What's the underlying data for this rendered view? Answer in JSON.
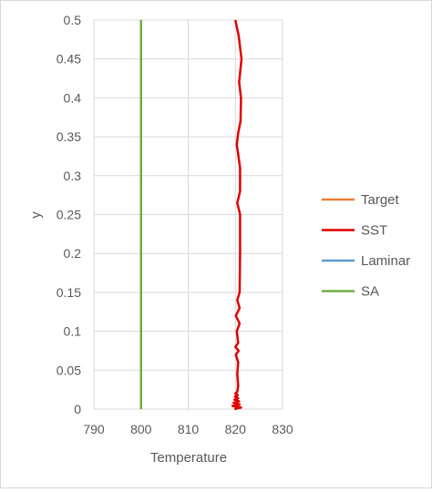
{
  "chart_data": {
    "type": "line",
    "title": "",
    "xlabel": "Temperature",
    "ylabel": "y",
    "xlim": [
      790,
      830
    ],
    "ylim": [
      0,
      0.5
    ],
    "x_ticks": [
      "790",
      "800",
      "810",
      "820",
      "830"
    ],
    "y_ticks": [
      "0",
      "0.05",
      "0.1",
      "0.15",
      "0.2",
      "0.25",
      "0.3",
      "0.35",
      "0.4",
      "0.45",
      "0.5"
    ],
    "grid": true,
    "legend_position": "right",
    "series": [
      {
        "name": "Target",
        "color": "#ED7D31",
        "points": []
      },
      {
        "name": "SST",
        "color": "#E00000",
        "points": [
          [
            819.8,
            0.0
          ],
          [
            821.2,
            0.002
          ],
          [
            819.4,
            0.004
          ],
          [
            820.9,
            0.006
          ],
          [
            819.6,
            0.008
          ],
          [
            820.8,
            0.01
          ],
          [
            819.8,
            0.012
          ],
          [
            820.6,
            0.014
          ],
          [
            819.9,
            0.016
          ],
          [
            820.5,
            0.018
          ],
          [
            820.0,
            0.02
          ],
          [
            820.4,
            0.022
          ],
          [
            820.6,
            0.03
          ],
          [
            820.4,
            0.045
          ],
          [
            820.6,
            0.06
          ],
          [
            820.1,
            0.07
          ],
          [
            820.7,
            0.075
          ],
          [
            820.0,
            0.08
          ],
          [
            820.6,
            0.085
          ],
          [
            820.5,
            0.09
          ],
          [
            820.3,
            0.1
          ],
          [
            820.9,
            0.11
          ],
          [
            820.1,
            0.12
          ],
          [
            820.9,
            0.13
          ],
          [
            820.4,
            0.14
          ],
          [
            820.9,
            0.15
          ],
          [
            821.0,
            0.2
          ],
          [
            821.0,
            0.25
          ],
          [
            820.4,
            0.265
          ],
          [
            821.0,
            0.28
          ],
          [
            821.0,
            0.31
          ],
          [
            820.3,
            0.34
          ],
          [
            820.6,
            0.355
          ],
          [
            821.1,
            0.37
          ],
          [
            821.2,
            0.4
          ],
          [
            820.8,
            0.42
          ],
          [
            821.3,
            0.45
          ],
          [
            820.7,
            0.48
          ],
          [
            820.0,
            0.5
          ]
        ]
      },
      {
        "name": "Laminar",
        "color": "#5B9BD5",
        "points": []
      },
      {
        "name": "SA",
        "color": "#70AD47",
        "points": [
          [
            800,
            0.0
          ],
          [
            800,
            0.5
          ]
        ]
      }
    ]
  }
}
